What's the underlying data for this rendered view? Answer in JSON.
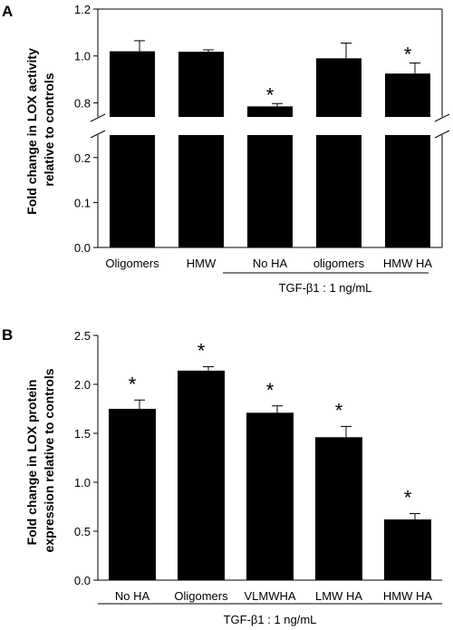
{
  "chart_data": [
    {
      "panel": "A",
      "type": "bar",
      "ylabel": "Fold change in LOX activity relative to controls",
      "ylabel_lines": [
        "Fold change in LOX activity",
        "relative to controls"
      ],
      "categories": [
        "Oligomers",
        "HMW",
        "No HA",
        "oligomers",
        "HMW HA"
      ],
      "values": [
        1.02,
        1.018,
        0.785,
        0.99,
        0.925
      ],
      "errors": [
        0.045,
        0.008,
        0.012,
        0.065,
        0.045
      ],
      "significant": [
        false,
        false,
        true,
        false,
        true
      ],
      "star_label": "*",
      "broken_y_axis": true,
      "ylim_lower": [
        0,
        0.25
      ],
      "ylim_upper": [
        0.74,
        1.2
      ],
      "yticks_lower": [
        "0.0",
        "0.1",
        "0.2"
      ],
      "yticks_upper": [
        "0.8",
        "1.0",
        "1.2"
      ],
      "treatment_label": "TGF-β1 : 1 ng/mL",
      "treatment_applies_to": [
        "No HA",
        "oligomers",
        "HMW HA"
      ],
      "grid": false,
      "bar_color": "#000000"
    },
    {
      "panel": "B",
      "type": "bar",
      "ylabel": "Fold change in LOX protein expression relative to controls",
      "ylabel_lines": [
        "Fold change in LOX protein",
        "expression relative to controls"
      ],
      "categories": [
        "No HA",
        "Oligomers",
        "VLMWHA",
        "LMW HA",
        "HMW HA"
      ],
      "values": [
        1.75,
        2.14,
        1.71,
        1.46,
        0.62
      ],
      "errors": [
        0.09,
        0.04,
        0.07,
        0.11,
        0.06
      ],
      "significant": [
        true,
        true,
        true,
        true,
        true
      ],
      "star_label": "*",
      "ylim": [
        0,
        2.5
      ],
      "yticks": [
        "0.0",
        "0.5",
        "1.0",
        "1.5",
        "2.0",
        "2.5"
      ],
      "treatment_label": "TGF-β1 : 1 ng/mL",
      "grid": false,
      "bar_color": "#000000"
    }
  ]
}
